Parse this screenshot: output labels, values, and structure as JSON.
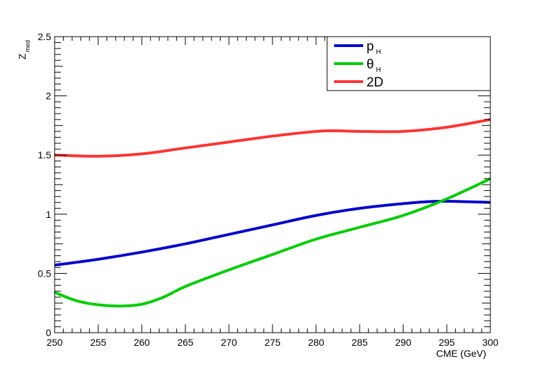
{
  "chart_data": {
    "type": "line",
    "xlabel": "CME (GeV)",
    "ylabel": "Z",
    "ylabel_sub": "med",
    "xlim": [
      250,
      300
    ],
    "ylim": [
      0,
      2.5
    ],
    "x_ticks": [
      250,
      255,
      260,
      265,
      270,
      275,
      280,
      285,
      290,
      295,
      300
    ],
    "x_tick_labels": [
      "250",
      "255",
      "260",
      "265",
      "270",
      "275",
      "280",
      "285",
      "290",
      "295",
      "300"
    ],
    "y_ticks": [
      0,
      0.5,
      1,
      1.5,
      2,
      2.5
    ],
    "y_tick_labels": [
      "0",
      "0.5",
      "1",
      "1.5",
      "2",
      "2.5"
    ],
    "grid": false,
    "legend_position": "top-right",
    "series": [
      {
        "name": "p",
        "name_sub": "H",
        "color": "#0000cc",
        "x": [
          250,
          255,
          260,
          265,
          270,
          275,
          280,
          285,
          290,
          292.5,
          295,
          300
        ],
        "y": [
          0.57,
          0.62,
          0.68,
          0.75,
          0.83,
          0.91,
          0.99,
          1.05,
          1.09,
          1.105,
          1.11,
          1.1
        ]
      },
      {
        "name": "θ",
        "name_sub": "H",
        "color": "#00cc00",
        "x": [
          250,
          252.5,
          255,
          257.5,
          260,
          262.5,
          265,
          270,
          275,
          280,
          285,
          290,
          295,
          300
        ],
        "y": [
          0.34,
          0.27,
          0.235,
          0.225,
          0.24,
          0.3,
          0.39,
          0.53,
          0.66,
          0.79,
          0.89,
          0.99,
          1.13,
          1.3
        ]
      },
      {
        "name": "2D",
        "name_sub": "",
        "color": "#ff3333",
        "x": [
          250,
          255,
          260,
          265,
          270,
          275,
          280,
          282.5,
          285,
          290,
          295,
          300
        ],
        "y": [
          1.5,
          1.49,
          1.51,
          1.56,
          1.61,
          1.66,
          1.7,
          1.705,
          1.7,
          1.7,
          1.735,
          1.8
        ]
      }
    ]
  }
}
